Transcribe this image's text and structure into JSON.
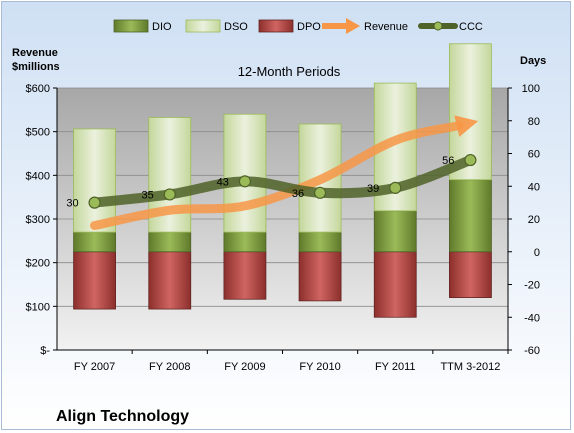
{
  "chart_data": {
    "type": "bar",
    "title": "12-Month Periods",
    "company": "Align Technology",
    "left_axis_label": [
      "Revenue",
      "$millions"
    ],
    "right_axis_label": "Days",
    "categories": [
      "FY 2007",
      "FY 2008",
      "FY 2009",
      "FY 2010",
      "FY 2011",
      "TTM 3-2012"
    ],
    "left_axis": {
      "min": 0,
      "max": 600,
      "ticks": [
        "$-",
        "$100",
        "$200",
        "$300",
        "$400",
        "$500",
        "$600"
      ]
    },
    "right_axis": {
      "min": -60,
      "max": 100,
      "ticks": [
        "-60",
        "-40",
        "-20",
        "0",
        "20",
        "40",
        "60",
        "80",
        "100"
      ]
    },
    "series": [
      {
        "name": "DIO",
        "type": "stacked-bar",
        "axis": "days",
        "color": "#77933c",
        "values": [
          12,
          12,
          12,
          12,
          25,
          44
        ]
      },
      {
        "name": "DSO",
        "type": "stacked-bar",
        "axis": "days",
        "color": "#d7e4bd",
        "values": [
          63,
          70,
          72,
          66,
          78,
          83
        ]
      },
      {
        "name": "DPO",
        "type": "stacked-bar",
        "axis": "days",
        "color": "#c0504d",
        "values": [
          -35,
          -35,
          -29,
          -30,
          -40,
          -28
        ]
      },
      {
        "name": "Revenue",
        "type": "arrow-line",
        "axis": "dollars",
        "color": "#f79646",
        "values": [
          285,
          320,
          330,
          390,
          480,
          520
        ]
      },
      {
        "name": "CCC",
        "type": "line",
        "axis": "days",
        "color": "#4f6228",
        "values": [
          30,
          35,
          43,
          36,
          39,
          56
        ],
        "data_labels": [
          "30",
          "35",
          "43",
          "36",
          "39",
          "56"
        ]
      }
    ],
    "legend_position": "top",
    "grid": true
  }
}
